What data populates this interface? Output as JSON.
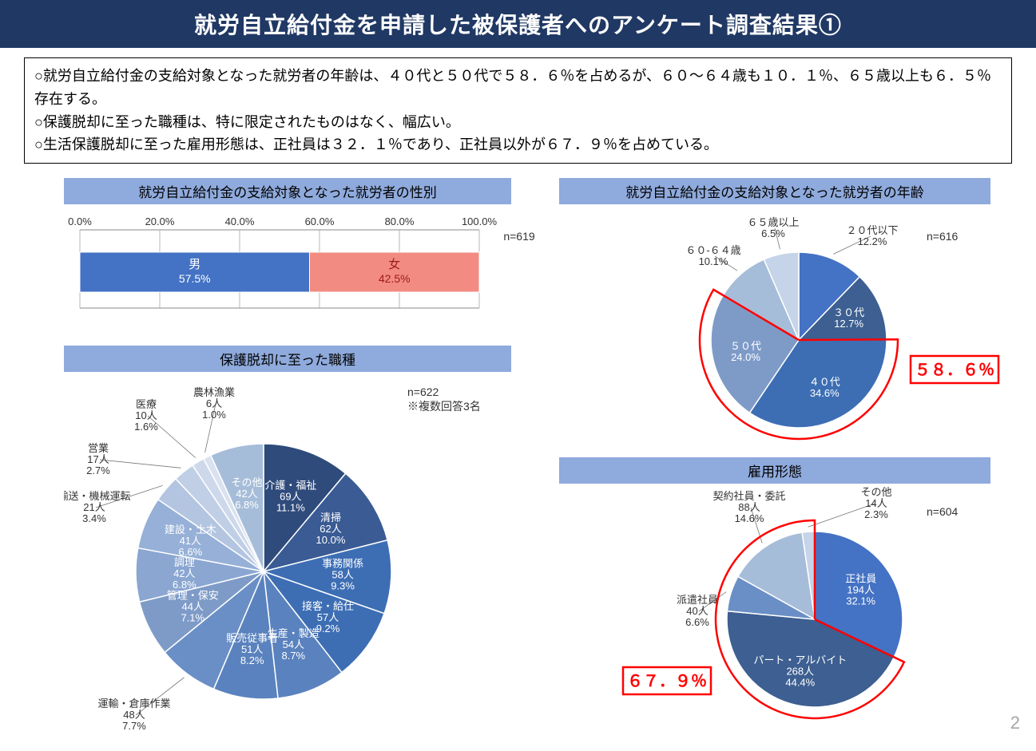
{
  "title": "就労自立給付金を申請した被保護者へのアンケート調査結果①",
  "summary": {
    "line1": "○就労自立給付金の支給対象となった就労者の年齢は、４０代と５０代で５８．６％を占めるが、６０～６４歳も１０．１％、６５歳以上も６．５％存在する。",
    "line2": "○保護脱却に至った職種は、特に限定されたものはなく、幅広い。",
    "line3": "○生活保護脱却に至った雇用形態は、正社員は３２．１％であり、正社員以外が６７．９％を占めている。"
  },
  "genderChart": {
    "title": "就労自立給付金の支給対象となった就労者の性別",
    "n": "n=619",
    "xticks": [
      "0.0%",
      "20.0%",
      "40.0%",
      "60.0%",
      "80.0%",
      "100.0%"
    ],
    "bars": [
      {
        "label": "男",
        "pct": "57.5%",
        "value": 57.5,
        "color": "#4472c4",
        "textcolor": "#fff"
      },
      {
        "label": "女",
        "pct": "42.5%",
        "value": 42.5,
        "color": "#f28b82",
        "textcolor": "#9c1b1b"
      }
    ]
  },
  "ageChart": {
    "title": "就労自立給付金の支給対象となった就労者の年齢",
    "n": "n=616",
    "callout": "５８．６％",
    "slices": [
      {
        "label": "２０代以下",
        "pct": "12.2%",
        "value": 12.2,
        "color": "#4472c4",
        "inside": false
      },
      {
        "label": "３０代",
        "pct": "12.7%",
        "value": 12.7,
        "color": "#3d5f91",
        "inside": true
      },
      {
        "label": "４０代",
        "pct": "34.6%",
        "value": 34.6,
        "color": "#3d6eb4",
        "inside": true
      },
      {
        "label": "５０代",
        "pct": "24.0%",
        "value": 24.0,
        "color": "#7e9bc8",
        "inside": true
      },
      {
        "label": "６０-６４歳",
        "pct": "10.1%",
        "value": 10.1,
        "color": "#a6bdd9",
        "inside": false
      },
      {
        "label": "６５歳以上",
        "pct": "6.5%",
        "value": 6.5,
        "color": "#c5d4e8",
        "inside": false
      }
    ]
  },
  "jobChart": {
    "title": "保護脱却に至った職種",
    "n": "n=622",
    "note": "※複数回答3名",
    "slices": [
      {
        "label": "介護・福祉",
        "count": "69人",
        "pct": "11.1%",
        "value": 11.1,
        "color": "#2f4b7c",
        "inside": true
      },
      {
        "label": "清掃",
        "count": "62人",
        "pct": "10.0%",
        "value": 10.0,
        "color": "#3a5b94",
        "inside": true
      },
      {
        "label": "事務関係",
        "count": "58人",
        "pct": "9.3%",
        "value": 9.3,
        "color": "#3d6eb4",
        "inside": true
      },
      {
        "label": "接客・給仕",
        "count": "57人",
        "pct": "9.2%",
        "value": 9.2,
        "color": "#3d6eb4",
        "inside": true
      },
      {
        "label": "生産・製造",
        "count": "54人",
        "pct": "8.7%",
        "value": 8.7,
        "color": "#5a82be",
        "inside": true
      },
      {
        "label": "販売従事者",
        "count": "51人",
        "pct": "8.2%",
        "value": 8.2,
        "color": "#5a82be",
        "inside": true
      },
      {
        "label": "運輸・倉庫作業",
        "count": "48人",
        "pct": "7.7%",
        "value": 7.7,
        "color": "#6a8fc6",
        "inside": false
      },
      {
        "label": "管理・保安",
        "count": "44人",
        "pct": "7.1%",
        "value": 7.1,
        "color": "#7e9bc8",
        "inside": true
      },
      {
        "label": "調理",
        "count": "42人",
        "pct": "6.8%",
        "value": 6.8,
        "color": "#8aa6d1",
        "inside": true
      },
      {
        "label": "建設・土木",
        "count": "41人",
        "pct": "6.6%",
        "value": 6.6,
        "color": "#96b0d7",
        "inside": true
      },
      {
        "label": "輸送・機械運転",
        "count": "21人",
        "pct": "3.4%",
        "value": 3.4,
        "color": "#b3c5e0",
        "inside": false
      },
      {
        "label": "営業",
        "count": "17人",
        "pct": "2.7%",
        "value": 2.7,
        "color": "#c0cfe6",
        "inside": false
      },
      {
        "label": "医療",
        "count": "10人",
        "pct": "1.6%",
        "value": 1.6,
        "color": "#cdd8eb",
        "inside": false
      },
      {
        "label": "農林漁業",
        "count": "6人",
        "pct": "1.0%",
        "value": 1.0,
        "color": "#dae2f0",
        "inside": false
      },
      {
        "label": "その他",
        "count": "42人",
        "pct": "6.8%",
        "value": 6.8,
        "color": "#a6bdd9",
        "inside": true
      }
    ]
  },
  "empChart": {
    "title": "雇用形態",
    "n": "n=604",
    "callout": "６７．９％",
    "slices": [
      {
        "label": "正社員",
        "count": "194人",
        "pct": "32.1%",
        "value": 32.1,
        "color": "#4472c4",
        "inside": true
      },
      {
        "label": "パート・アルバイト",
        "count": "268人",
        "pct": "44.4%",
        "value": 44.4,
        "color": "#3d5f91",
        "inside": true
      },
      {
        "label": "派遣社員",
        "count": "40人",
        "pct": "6.6%",
        "value": 6.6,
        "color": "#6a8fc6",
        "inside": false
      },
      {
        "label": "契約社員・委託",
        "count": "88人",
        "pct": "14.6%",
        "value": 14.6,
        "color": "#a6bdd9",
        "inside": false
      },
      {
        "label": "その他",
        "count": "14人",
        "pct": "2.3%",
        "value": 2.3,
        "color": "#c5d4e8",
        "inside": false
      }
    ]
  },
  "pageNum": "2"
}
